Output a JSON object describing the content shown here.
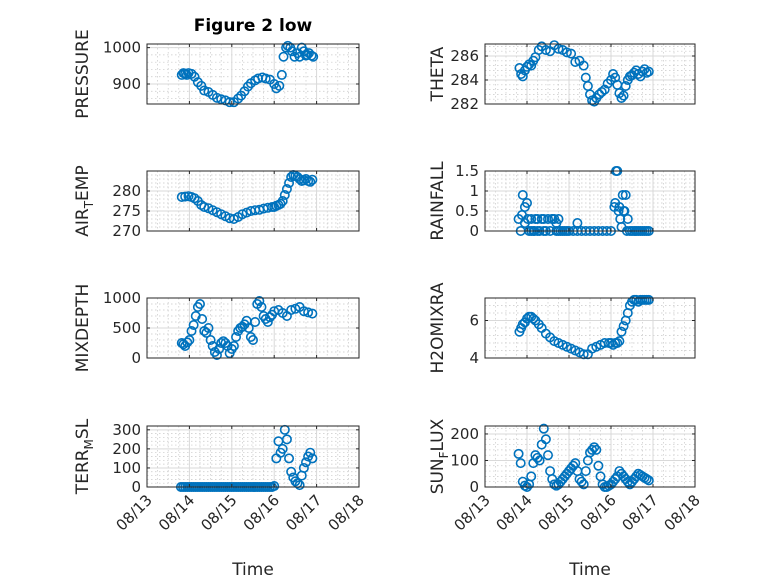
{
  "title": "Figure 2 low",
  "colors": {
    "marker": "#0072BD",
    "grid": "#d9d9d9",
    "axes": "#262626"
  },
  "chart_data": [
    {
      "type": "scatter",
      "ylabel": "PRESSURE",
      "xlim": [
        "08/13",
        "08/18"
      ],
      "ylim": [
        845,
        1010
      ],
      "yticks": [
        900,
        1000
      ],
      "grid": true,
      "x": [
        0.82,
        0.86,
        0.9,
        0.94,
        0.98,
        1.05,
        1.12,
        1.2,
        1.28,
        1.35,
        1.45,
        1.55,
        1.65,
        1.75,
        1.85,
        1.95,
        2.05,
        2.15,
        2.22,
        2.3,
        2.38,
        2.45,
        2.55,
        2.62,
        2.72,
        2.8,
        2.9,
        3.0,
        3.05,
        3.12,
        3.18,
        3.22,
        3.28,
        3.32,
        3.38,
        3.42,
        3.48,
        3.55,
        3.6,
        3.65,
        3.7,
        3.75,
        3.78,
        3.82,
        3.88,
        3.92
      ],
      "y": [
        925,
        930,
        928,
        925,
        930,
        928,
        920,
        905,
        895,
        882,
        878,
        870,
        862,
        858,
        855,
        850,
        850,
        860,
        868,
        880,
        893,
        902,
        910,
        915,
        918,
        915,
        912,
        900,
        888,
        895,
        925,
        975,
        1000,
        1005,
        1000,
        990,
        975,
        985,
        975,
        1000,
        990,
        978,
        980,
        985,
        978,
        975
      ]
    },
    {
      "type": "scatter",
      "ylabel": "THETA",
      "xlim": [
        "08/13",
        "08/18"
      ],
      "ylim": [
        282,
        287
      ],
      "yticks": [
        282,
        284,
        286
      ],
      "grid": true,
      "x": [
        0.82,
        0.86,
        0.9,
        0.95,
        1.0,
        1.05,
        1.1,
        1.15,
        1.2,
        1.28,
        1.35,
        1.45,
        1.55,
        1.65,
        1.75,
        1.85,
        1.95,
        2.05,
        2.15,
        2.25,
        2.35,
        2.4,
        2.45,
        2.5,
        2.55,
        2.6,
        2.65,
        2.72,
        2.78,
        2.85,
        2.92,
        3.0,
        3.05,
        3.1,
        3.15,
        3.2,
        3.25,
        3.3,
        3.35,
        3.4,
        3.45,
        3.5,
        3.55,
        3.6,
        3.65,
        3.7,
        3.75,
        3.8,
        3.85,
        3.9
      ],
      "y": [
        285,
        284.5,
        284.3,
        284.8,
        285.1,
        285.3,
        285.2,
        285.6,
        285.9,
        286.5,
        286.8,
        286.5,
        286.4,
        286.9,
        286.6,
        286.5,
        286.3,
        286.2,
        285.5,
        285.6,
        285.2,
        284.2,
        283.5,
        282.8,
        282.3,
        282.2,
        282.5,
        282.8,
        283,
        283.2,
        283.7,
        284,
        284.5,
        284.2,
        283.6,
        282.9,
        282.5,
        282.7,
        283.5,
        284,
        284.3,
        284.4,
        284.6,
        284.8,
        284.5,
        284.3,
        284.7,
        284.9,
        284.6,
        284.7
      ]
    },
    {
      "type": "scatter",
      "ylabel": "AIR_TEMP",
      "xlim": [
        "08/13",
        "08/18"
      ],
      "ylim": [
        270,
        285
      ],
      "yticks": [
        270,
        275,
        280
      ],
      "grid": true,
      "x": [
        0.82,
        0.9,
        0.98,
        1.05,
        1.12,
        1.2,
        1.28,
        1.35,
        1.45,
        1.55,
        1.65,
        1.75,
        1.85,
        1.95,
        2.05,
        2.15,
        2.25,
        2.35,
        2.45,
        2.55,
        2.65,
        2.75,
        2.85,
        2.95,
        3.0,
        3.05,
        3.1,
        3.15,
        3.2,
        3.25,
        3.3,
        3.35,
        3.4,
        3.45,
        3.5,
        3.55,
        3.6,
        3.65,
        3.7,
        3.75,
        3.8,
        3.85,
        3.9
      ],
      "y": [
        278.5,
        278.6,
        278.7,
        278.5,
        278.2,
        277.5,
        276.5,
        276,
        275.7,
        275.2,
        274.7,
        274.2,
        273.7,
        273.2,
        273,
        273.5,
        274.2,
        274.6,
        275,
        275.2,
        275.3,
        275.6,
        275.8,
        276,
        276,
        276.3,
        276.5,
        276.8,
        277.5,
        279,
        280.5,
        282,
        283.5,
        284,
        283.8,
        283.5,
        283,
        282.5,
        282.7,
        283,
        282.5,
        282.3,
        282.8
      ]
    },
    {
      "type": "scatter",
      "ylabel": "RAINFALL",
      "xlim": [
        "08/13",
        "08/18"
      ],
      "ylim": [
        0,
        1.5
      ],
      "yticks": [
        0,
        0.5,
        1,
        1.5
      ],
      "grid": true,
      "x": [
        0.8,
        0.85,
        0.9,
        0.95,
        1.0,
        1.05,
        1.1,
        1.15,
        1.2,
        1.25,
        1.3,
        1.35,
        1.4,
        1.45,
        1.5,
        1.55,
        1.6,
        1.65,
        1.7,
        1.75,
        1.8,
        1.85,
        1.9,
        1.95,
        2.0,
        2.1,
        2.2,
        2.3,
        2.4,
        2.5,
        2.6,
        2.7,
        2.8,
        2.9,
        3.0,
        3.1,
        3.15,
        3.2,
        3.25,
        3.3,
        3.35,
        3.4,
        3.45,
        3.5,
        3.55,
        3.6,
        3.65,
        3.7,
        3.75,
        3.8,
        3.85,
        3.9,
        0.88,
        0.95,
        1.02,
        1.1,
        1.18,
        1.25,
        1.4,
        1.6,
        1.7,
        1.75,
        2.2,
        3.08,
        3.12,
        3.18,
        3.22,
        3.28,
        3.32,
        3.38
      ],
      "y": [
        0.3,
        0,
        0.9,
        0.6,
        0.7,
        0,
        0.3,
        0,
        0.3,
        0.3,
        0,
        0.3,
        0,
        0,
        0.3,
        0,
        0.3,
        0.3,
        0.2,
        0,
        0,
        0,
        0,
        0,
        0,
        0,
        0,
        0,
        0,
        0,
        0,
        0,
        0,
        0,
        0,
        0.7,
        1.5,
        0.6,
        0.1,
        0.5,
        0.9,
        0.3,
        0,
        0,
        0,
        0,
        0,
        0,
        0,
        0,
        0,
        0,
        0.4,
        0.2,
        0.3,
        0,
        0,
        0,
        0.3,
        0.3,
        0,
        0.3,
        0.2,
        0.6,
        1.5,
        0.5,
        0.3,
        0.9,
        0.5,
        0
      ]
    },
    {
      "type": "scatter",
      "ylabel": "MIXDEPTH",
      "xlim": [
        "08/13",
        "08/18"
      ],
      "ylim": [
        0,
        1000
      ],
      "yticks": [
        0,
        500,
        1000
      ],
      "grid": true,
      "x": [
        0.82,
        0.86,
        0.9,
        0.95,
        1.0,
        1.05,
        1.1,
        1.15,
        1.2,
        1.25,
        1.3,
        1.35,
        1.4,
        1.45,
        1.5,
        1.55,
        1.6,
        1.65,
        1.7,
        1.75,
        1.8,
        1.85,
        1.9,
        1.95,
        2.0,
        2.05,
        2.1,
        2.15,
        2.2,
        2.25,
        2.3,
        2.35,
        2.4,
        2.45,
        2.5,
        2.55,
        2.6,
        2.65,
        2.7,
        2.75,
        2.8,
        2.85,
        2.9,
        2.95,
        3.0,
        3.1,
        3.2,
        3.3,
        3.4,
        3.5,
        3.6,
        3.7,
        3.8,
        3.9
      ],
      "y": [
        250,
        230,
        200,
        260,
        300,
        450,
        550,
        700,
        850,
        900,
        650,
        450,
        420,
        500,
        300,
        200,
        100,
        50,
        150,
        250,
        280,
        250,
        200,
        80,
        150,
        200,
        350,
        450,
        500,
        520,
        560,
        620,
        500,
        350,
        300,
        600,
        900,
        950,
        850,
        700,
        650,
        600,
        680,
        720,
        780,
        800,
        750,
        700,
        800,
        820,
        850,
        780,
        760,
        740
      ]
    },
    {
      "type": "scatter",
      "ylabel": "H2OMIXRA",
      "xlim": [
        "08/13",
        "08/18"
      ],
      "ylim": [
        4,
        7.2
      ],
      "yticks": [
        4,
        6
      ],
      "grid": true,
      "x": [
        0.82,
        0.86,
        0.9,
        0.95,
        1.0,
        1.05,
        1.1,
        1.15,
        1.2,
        1.28,
        1.35,
        1.45,
        1.55,
        1.65,
        1.75,
        1.85,
        1.95,
        2.05,
        2.15,
        2.25,
        2.35,
        2.45,
        2.55,
        2.65,
        2.75,
        2.85,
        2.95,
        3.0,
        3.05,
        3.1,
        3.15,
        3.2,
        3.25,
        3.3,
        3.35,
        3.4,
        3.45,
        3.5,
        3.55,
        3.6,
        3.65,
        3.7,
        3.75,
        3.8,
        3.85,
        3.9
      ],
      "y": [
        5.4,
        5.6,
        5.8,
        5.9,
        6.1,
        6.2,
        6.2,
        6.1,
        6.0,
        5.8,
        5.6,
        5.3,
        5.1,
        4.9,
        4.8,
        4.7,
        4.6,
        4.5,
        4.4,
        4.3,
        4.2,
        4.2,
        4.5,
        4.6,
        4.7,
        4.8,
        4.8,
        4.8,
        4.7,
        4.8,
        4.8,
        4.9,
        5.4,
        5.7,
        6.0,
        6.4,
        6.8,
        7.0,
        7.1,
        7.1,
        7.0,
        7.1,
        7.1,
        7.1,
        7.1,
        7.1
      ]
    },
    {
      "type": "scatter",
      "ylabel": "TERR_MSL",
      "xlim": [
        "08/13",
        "08/18"
      ],
      "ylim": [
        0,
        320
      ],
      "yticks": [
        0,
        100,
        200,
        300
      ],
      "grid": true,
      "x": [
        0.8,
        0.85,
        0.9,
        0.95,
        1.0,
        1.05,
        1.1,
        1.15,
        1.2,
        1.25,
        1.3,
        1.35,
        1.4,
        1.45,
        1.5,
        1.55,
        1.6,
        1.65,
        1.7,
        1.75,
        1.8,
        1.85,
        1.9,
        1.95,
        2.0,
        2.05,
        2.1,
        2.15,
        2.2,
        2.25,
        2.3,
        2.35,
        2.4,
        2.45,
        2.5,
        2.55,
        2.6,
        2.65,
        2.7,
        2.75,
        2.8,
        2.85,
        2.9,
        2.95,
        3.0,
        3.05,
        3.1,
        3.15,
        3.2,
        3.25,
        3.3,
        3.35,
        3.4,
        3.45,
        3.5,
        3.55,
        3.6,
        3.65,
        3.7,
        3.75,
        3.8,
        3.85,
        3.9
      ],
      "y": [
        0,
        0,
        0,
        0,
        0,
        0,
        0,
        0,
        0,
        0,
        0,
        0,
        0,
        0,
        0,
        0,
        0,
        0,
        0,
        0,
        0,
        0,
        0,
        0,
        0,
        0,
        0,
        0,
        0,
        0,
        0,
        0,
        0,
        0,
        0,
        0,
        0,
        0,
        0,
        0,
        0,
        0,
        0,
        0,
        5,
        150,
        240,
        180,
        200,
        300,
        250,
        150,
        80,
        50,
        30,
        20,
        10,
        60,
        100,
        130,
        160,
        180,
        150
      ]
    },
    {
      "type": "scatter",
      "ylabel": "SUN_FLUX",
      "xlim": [
        "08/13",
        "08/18"
      ],
      "ylim": [
        0,
        230
      ],
      "yticks": [
        0,
        100,
        200
      ],
      "grid": true,
      "x": [
        0.8,
        0.85,
        0.9,
        0.95,
        1.0,
        1.05,
        1.1,
        1.15,
        1.2,
        1.25,
        1.3,
        1.35,
        1.4,
        1.45,
        1.5,
        1.55,
        1.6,
        1.65,
        1.7,
        1.75,
        1.8,
        1.85,
        1.9,
        1.95,
        2.0,
        2.05,
        2.1,
        2.15,
        2.2,
        2.25,
        2.3,
        2.35,
        2.4,
        2.45,
        2.5,
        2.55,
        2.6,
        2.65,
        2.7,
        2.75,
        2.8,
        2.85,
        2.9,
        2.95,
        3.0,
        3.05,
        3.1,
        3.15,
        3.2,
        3.25,
        3.3,
        3.35,
        3.4,
        3.45,
        3.5,
        3.55,
        3.6,
        3.65,
        3.7,
        3.75,
        3.8,
        3.85,
        3.9
      ],
      "y": [
        125,
        90,
        20,
        5,
        0,
        10,
        40,
        90,
        120,
        110,
        100,
        160,
        220,
        180,
        120,
        60,
        30,
        10,
        5,
        10,
        20,
        30,
        40,
        50,
        60,
        70,
        80,
        90,
        60,
        30,
        20,
        10,
        60,
        100,
        130,
        140,
        150,
        140,
        80,
        40,
        10,
        0,
        0,
        5,
        10,
        20,
        30,
        40,
        60,
        50,
        40,
        30,
        20,
        10,
        20,
        30,
        40,
        50,
        45,
        40,
        35,
        30,
        25
      ]
    }
  ],
  "xticks": [
    "08/13",
    "08/14",
    "08/15",
    "08/16",
    "08/17",
    "08/18"
  ],
  "xlabel": "Time"
}
